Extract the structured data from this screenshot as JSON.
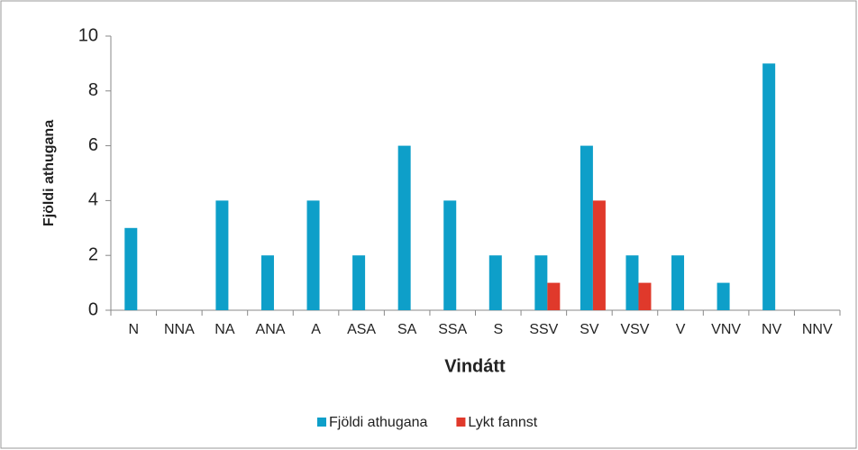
{
  "chart_data": {
    "type": "bar",
    "x_label": "Vindátt",
    "y_label": "Fjöldi athugana",
    "categories": [
      "N",
      "NNA",
      "NA",
      "ANA",
      "A",
      "ASA",
      "SA",
      "SSA",
      "S",
      "SSV",
      "SV",
      "VSV",
      "V",
      "VNV",
      "NV",
      "NNV"
    ],
    "series": [
      {
        "name": "Fjöldi athugana",
        "color": "#0e9fc9",
        "values": [
          3,
          0,
          4,
          2,
          4,
          2,
          6,
          4,
          2,
          2,
          6,
          2,
          2,
          1,
          9,
          0
        ]
      },
      {
        "name": "Lykt fannst",
        "color": "#e0392b",
        "values": [
          0,
          0,
          0,
          0,
          0,
          0,
          0,
          0,
          0,
          1,
          4,
          1,
          0,
          0,
          0,
          0
        ]
      }
    ],
    "ylim": [
      0,
      10
    ],
    "yticks": [
      0,
      2,
      4,
      6,
      8,
      10
    ],
    "grid": false,
    "legend": "bottom"
  }
}
